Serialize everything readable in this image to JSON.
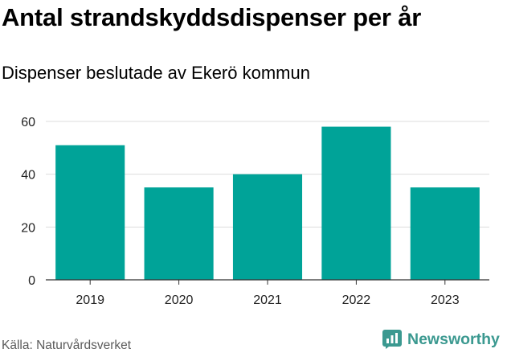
{
  "header": {
    "title": "Antal strandskyddsdispenser per år",
    "subtitle": "Dispenser beslutade av Ekerö kommun"
  },
  "footer": {
    "source": "Källa: Naturvårdsverket",
    "brand": "Newsworthy"
  },
  "colors": {
    "bar": "#00a398",
    "grid": "#dddddd",
    "axis": "#333333",
    "brand": "#3b9990"
  },
  "icons": {
    "brand_logo": "newsworthy-logo-icon"
  },
  "chart_data": {
    "type": "bar",
    "title": "Antal strandskyddsdispenser per år",
    "subtitle": "Dispenser beslutade av Ekerö kommun",
    "categories": [
      "2019",
      "2020",
      "2021",
      "2022",
      "2023"
    ],
    "values": [
      51,
      35,
      40,
      58,
      35
    ],
    "xlabel": "",
    "ylabel": "",
    "ylim": [
      0,
      60
    ],
    "yticks": [
      0,
      20,
      40,
      60
    ],
    "grid": true,
    "legend": "none"
  }
}
